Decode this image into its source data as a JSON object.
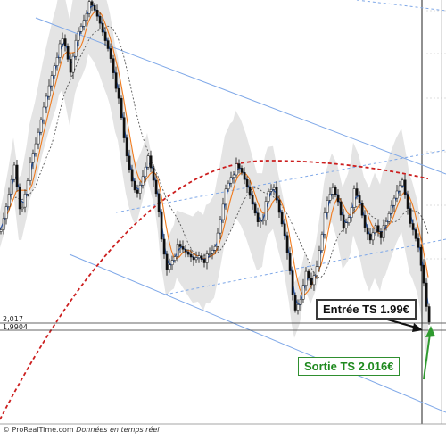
{
  "chart_data": {
    "type": "candlestick",
    "price_labels": [
      "2,017",
      "1,9904"
    ],
    "annotations": {
      "entry": "Entrée TS 1.99€",
      "exit": "Sortie TS 2.016€"
    },
    "footer": {
      "copyright": "© ProRealTime.com",
      "note": "Données en temps réel"
    },
    "colors": {
      "candle": "#111111",
      "ma_fast": "#2f6fe0",
      "ma_medium": "#f07a1c",
      "ma_slow": "#555555",
      "sar_curve": "#cc1f1f",
      "channel": "#7fa8e8",
      "band_fill": "#e4e4e4",
      "exit_arrow": "#2f9a2f",
      "exit_text": "#1f8a1f"
    }
  }
}
